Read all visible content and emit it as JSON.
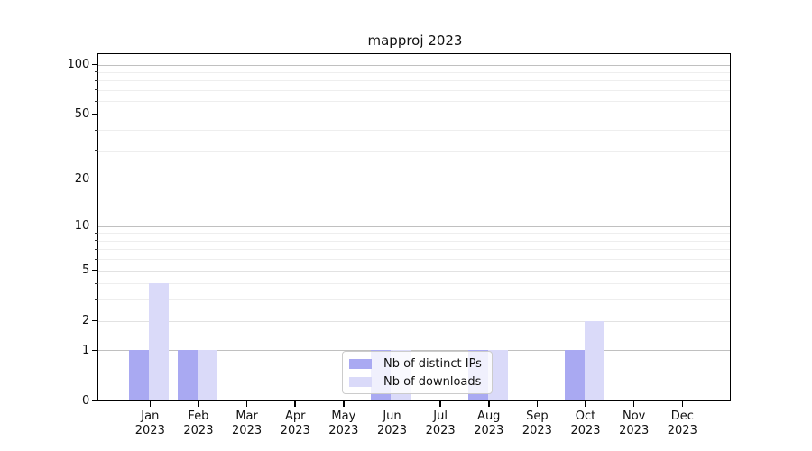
{
  "title": "mapproj 2023",
  "colors": {
    "ips": "#a9a9f2",
    "downloads": "#dadaf9",
    "grid_strong": "#c0c0c0",
    "grid_medium": "#e2e2e2",
    "grid_minor": "#eeeeee",
    "spine": "#000000"
  },
  "legend": {
    "items": [
      {
        "label": "Nb of distinct IPs",
        "color_key": "ips"
      },
      {
        "label": "Nb of downloads",
        "color_key": "downloads"
      }
    ]
  },
  "chart_data": {
    "type": "bar",
    "title": "mapproj 2023",
    "categories": [
      "Jan 2023",
      "Feb 2023",
      "Mar 2023",
      "Apr 2023",
      "May 2023",
      "Jun 2023",
      "Jul 2023",
      "Aug 2023",
      "Sep 2023",
      "Oct 2023",
      "Nov 2023",
      "Dec 2023"
    ],
    "series": [
      {
        "name": "Nb of distinct IPs",
        "color_key": "ips",
        "values": [
          1,
          1,
          0,
          0,
          0,
          1,
          0,
          1,
          0,
          1,
          0,
          0
        ]
      },
      {
        "name": "Nb of downloads",
        "color_key": "downloads",
        "values": [
          4,
          1,
          0,
          0,
          0,
          1,
          0,
          1,
          0,
          2,
          0,
          0
        ]
      }
    ],
    "yscale": "log(1+x)",
    "ylim": [
      0,
      115
    ],
    "yticks": [
      0,
      1,
      2,
      5,
      10,
      20,
      50,
      100
    ],
    "yticks_strong": [
      1,
      10,
      100
    ],
    "yticks_minor": [
      3,
      4,
      6,
      7,
      8,
      9,
      30,
      40,
      60,
      70,
      80,
      90
    ],
    "grid": true,
    "legend_position": "lower center"
  }
}
